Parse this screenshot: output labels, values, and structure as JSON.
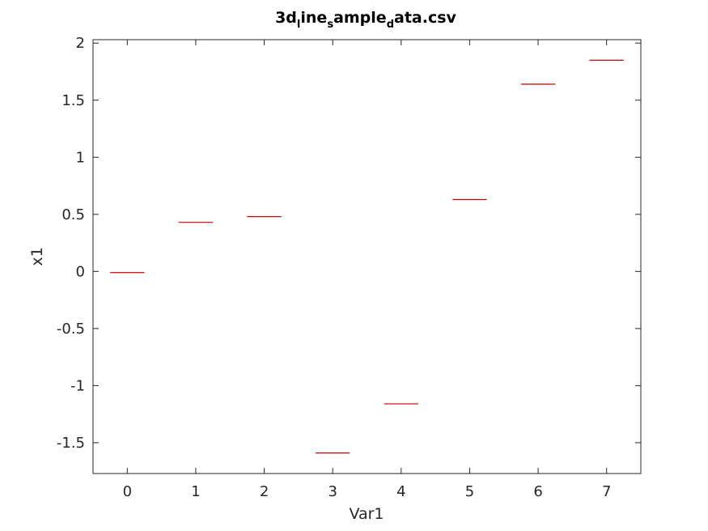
{
  "chart_data": {
    "type": "bar",
    "title": {
      "parts": [
        {
          "text": "3d",
          "sub": false
        },
        {
          "text": "l",
          "sub": true
        },
        {
          "text": "ine",
          "sub": false
        },
        {
          "text": "s",
          "sub": true
        },
        {
          "text": "ample",
          "sub": false
        },
        {
          "text": "d",
          "sub": true
        },
        {
          "text": "ata.csv",
          "sub": false
        }
      ]
    },
    "xlabel": "Var1",
    "ylabel": "x1",
    "xlim": [
      -0.5,
      7.5
    ],
    "ylim": [
      -1.77,
      2.03
    ],
    "xticks": [
      0,
      1,
      2,
      3,
      4,
      5,
      6,
      7
    ],
    "xtick_labels": [
      "0",
      "1",
      "2",
      "3",
      "4",
      "5",
      "6",
      "7"
    ],
    "yticks": [
      -1.5,
      -1,
      -0.5,
      0,
      0.5,
      1,
      1.5,
      2
    ],
    "ytick_labels": [
      "-1.5",
      "-1",
      "-0.5",
      "0",
      "0.5",
      "1",
      "1.5",
      "2"
    ],
    "x": [
      0,
      1,
      2,
      3,
      4,
      5,
      6,
      7
    ],
    "values": [
      -0.01,
      0.43,
      0.48,
      -1.59,
      -1.16,
      0.63,
      1.64,
      1.85
    ],
    "bar_width": 0.5,
    "bar_color": "#cc0000",
    "axis_color": "#262626",
    "grid": false
  }
}
